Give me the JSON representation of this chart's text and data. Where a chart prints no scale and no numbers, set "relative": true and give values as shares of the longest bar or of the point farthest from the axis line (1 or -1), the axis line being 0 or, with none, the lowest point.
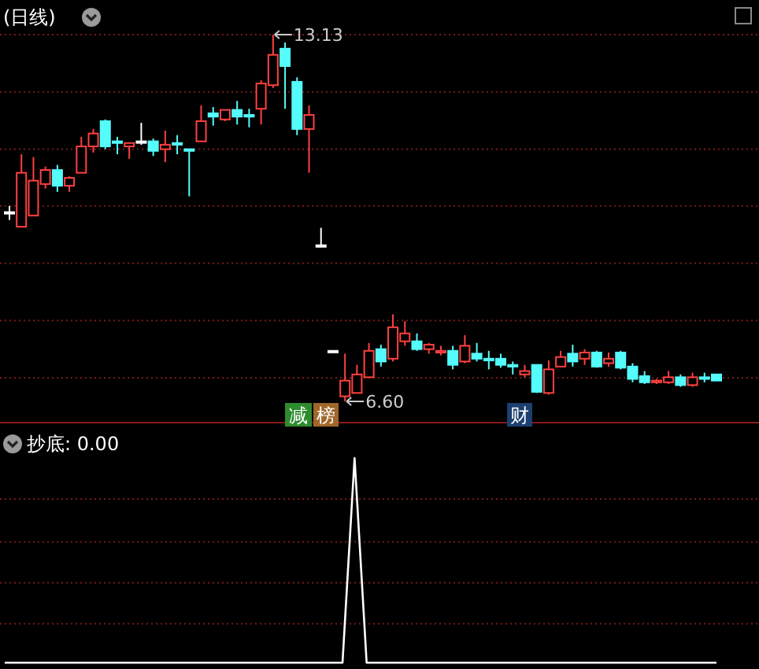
{
  "chart_data": [
    {
      "type": "candlestick",
      "title": "(日线)",
      "grid": "y",
      "yticks": [
        {
          "value": 13.13,
          "label": null
        },
        {
          "value": 12.11,
          "label": null
        },
        {
          "value": 11.09,
          "label": null
        },
        {
          "value": 10.08,
          "label": null
        },
        {
          "value": 9.06,
          "label": null
        },
        {
          "value": 8.04,
          "label": null
        },
        {
          "value": 7.02,
          "label": null
        }
      ],
      "categories": [
        null,
        null,
        null,
        null,
        null,
        null,
        null,
        null,
        null,
        null,
        null,
        null,
        null,
        null,
        null,
        null,
        null,
        null,
        null,
        null,
        null,
        null,
        null,
        null,
        null,
        null,
        null,
        null,
        null,
        null,
        null,
        null,
        null,
        null,
        null,
        null,
        null,
        null,
        null,
        null,
        null,
        null,
        null,
        null,
        null,
        null,
        null,
        null,
        null,
        null,
        null,
        null,
        null,
        null,
        null,
        null,
        null,
        null,
        null,
        null
      ],
      "ohlc": [
        [
          9.97,
          10.08,
          9.83,
          9.97
        ],
        [
          9.71,
          11.0,
          9.71,
          10.67
        ],
        [
          9.91,
          10.95,
          9.91,
          10.53
        ],
        [
          10.47,
          10.78,
          10.39,
          10.72
        ],
        [
          10.72,
          10.81,
          10.33,
          10.44
        ],
        [
          10.44,
          10.61,
          10.33,
          10.58
        ],
        [
          10.67,
          11.31,
          10.67,
          11.14
        ],
        [
          11.14,
          11.45,
          11.03,
          11.37
        ],
        [
          11.59,
          11.62,
          11.09,
          11.14
        ],
        [
          11.23,
          11.31,
          11.0,
          11.2
        ],
        [
          11.14,
          11.2,
          10.92,
          11.2
        ],
        [
          11.23,
          11.56,
          11.17,
          11.23
        ],
        [
          11.23,
          11.28,
          10.97,
          11.06
        ],
        [
          11.09,
          11.42,
          10.86,
          11.17
        ],
        [
          11.2,
          11.34,
          11.0,
          11.17
        ],
        [
          11.09,
          11.09,
          10.25,
          11.06
        ],
        [
          11.23,
          11.87,
          11.23,
          11.59
        ],
        [
          11.73,
          11.84,
          11.51,
          11.67
        ],
        [
          11.62,
          11.79,
          11.59,
          11.79
        ],
        [
          11.79,
          11.95,
          11.53,
          11.67
        ],
        [
          11.7,
          11.81,
          11.48,
          11.67
        ],
        [
          11.81,
          12.32,
          11.53,
          12.26
        ],
        [
          12.23,
          13.13,
          12.18,
          12.77
        ],
        [
          12.88,
          12.99,
          11.81,
          12.57
        ],
        [
          12.29,
          12.37,
          11.34,
          11.45
        ],
        [
          11.45,
          11.87,
          10.67,
          11.7
        ],
        [
          9.38,
          9.69,
          9.38,
          9.38
        ],
        [
          7.5,
          7.5,
          7.5,
          7.5
        ],
        [
          6.69,
          7.45,
          6.6,
          6.97
        ],
        [
          6.75,
          7.25,
          6.75,
          7.08
        ],
        [
          7.03,
          7.64,
          7.03,
          7.5
        ],
        [
          7.53,
          7.61,
          7.22,
          7.31
        ],
        [
          7.36,
          8.15,
          7.31,
          7.92
        ],
        [
          7.67,
          8.03,
          7.59,
          7.81
        ],
        [
          7.67,
          7.81,
          7.5,
          7.53
        ],
        [
          7.53,
          7.64,
          7.45,
          7.61
        ],
        [
          7.47,
          7.59,
          7.42,
          7.5
        ],
        [
          7.5,
          7.59,
          7.17,
          7.25
        ],
        [
          7.31,
          7.78,
          7.28,
          7.59
        ],
        [
          7.45,
          7.64,
          7.31,
          7.36
        ],
        [
          7.36,
          7.5,
          7.17,
          7.33
        ],
        [
          7.36,
          7.45,
          7.2,
          7.25
        ],
        [
          7.25,
          7.31,
          7.08,
          7.22
        ],
        [
          7.08,
          7.25,
          7.03,
          7.14
        ],
        [
          7.25,
          7.25,
          6.75,
          6.77
        ],
        [
          6.75,
          7.33,
          6.72,
          7.17
        ],
        [
          7.22,
          7.5,
          7.22,
          7.39
        ],
        [
          7.45,
          7.61,
          7.22,
          7.31
        ],
        [
          7.36,
          7.53,
          7.25,
          7.47
        ],
        [
          7.47,
          7.5,
          7.2,
          7.22
        ],
        [
          7.28,
          7.47,
          7.22,
          7.36
        ],
        [
          7.47,
          7.5,
          7.17,
          7.2
        ],
        [
          7.22,
          7.28,
          6.94,
          7.0
        ],
        [
          7.05,
          7.14,
          6.91,
          6.94
        ],
        [
          6.94,
          7.0,
          6.91,
          6.97
        ],
        [
          6.94,
          7.14,
          6.91,
          7.03
        ],
        [
          7.03,
          7.08,
          6.86,
          6.89
        ],
        [
          6.89,
          7.11,
          6.86,
          7.03
        ],
        [
          7.03,
          7.11,
          6.94,
          7.0
        ],
        [
          7.08,
          7.08,
          6.97,
          6.97
        ]
      ],
      "colors": [
        "#ffffff",
        "#ff4040",
        "#ff4040",
        "#ff4040",
        "#54fcfc",
        "#ff4040",
        "#ff4040",
        "#ff4040",
        "#54fcfc",
        "#54fcfc",
        "#ff4040",
        "#ffffff",
        "#54fcfc",
        "#ff4040",
        "#54fcfc",
        "#54fcfc",
        "#ff4040",
        "#54fcfc",
        "#ff4040",
        "#54fcfc",
        "#54fcfc",
        "#ff4040",
        "#ff4040",
        "#54fcfc",
        "#54fcfc",
        "#ff4040",
        "#ffffff",
        "#ffffff",
        "#ff4040",
        "#ff4040",
        "#ff4040",
        "#54fcfc",
        "#ff4040",
        "#ff4040",
        "#54fcfc",
        "#ff4040",
        "#ff4040",
        "#54fcfc",
        "#ff4040",
        "#54fcfc",
        "#54fcfc",
        "#54fcfc",
        "#54fcfc",
        "#ff4040",
        "#54fcfc",
        "#ff4040",
        "#ff4040",
        "#54fcfc",
        "#ff4040",
        "#54fcfc",
        "#ff4040",
        "#54fcfc",
        "#54fcfc",
        "#54fcfc",
        "#ff4040",
        "#ff4040",
        "#54fcfc",
        "#ff4040",
        "#54fcfc",
        "#54fcfc"
      ],
      "annotations": [
        "13.13",
        "6.60",
        "减",
        "榜",
        "财"
      ]
    },
    {
      "type": "line",
      "title": "抄底: 0.00",
      "relative": true,
      "color": "#ffffff",
      "ref_lines": [
        {
          "axis": "y",
          "value": 0.8,
          "color": "#7a1a1a",
          "line_style": "dotted"
        },
        {
          "axis": "y",
          "value": 0.59,
          "color": "#7a1a1a",
          "line_style": "dotted"
        },
        {
          "axis": "y",
          "value": 0.39,
          "color": "#7a1a1a",
          "line_style": "dotted"
        },
        {
          "axis": "y",
          "value": 0.19,
          "color": "#7a1a1a",
          "line_style": "dotted"
        }
      ],
      "categories": [
        null,
        null,
        null,
        null,
        null,
        null,
        null,
        null,
        null,
        null,
        null,
        null,
        null,
        null,
        null,
        null,
        null,
        null,
        null,
        null,
        null,
        null,
        null,
        null,
        null,
        null,
        null,
        null,
        null,
        null,
        null,
        null,
        null,
        null,
        null,
        null,
        null,
        null,
        null,
        null,
        null,
        null,
        null,
        null,
        null,
        null,
        null,
        null,
        null,
        null,
        null,
        null,
        null,
        null,
        null,
        null,
        null,
        null,
        null,
        null
      ],
      "values": [
        0,
        0,
        0,
        0,
        0,
        0,
        0,
        0,
        0,
        0,
        0,
        0,
        0,
        0,
        0,
        0,
        0,
        0,
        0,
        0,
        0,
        0,
        0,
        0,
        0,
        0,
        0,
        0,
        0,
        1,
        0,
        0,
        0,
        0,
        0,
        0,
        0,
        0,
        0,
        0,
        0,
        0,
        0,
        0,
        0,
        0,
        0,
        0,
        0,
        0,
        0,
        0,
        0,
        0,
        0,
        0,
        0,
        0,
        0,
        0
      ]
    }
  ]
}
